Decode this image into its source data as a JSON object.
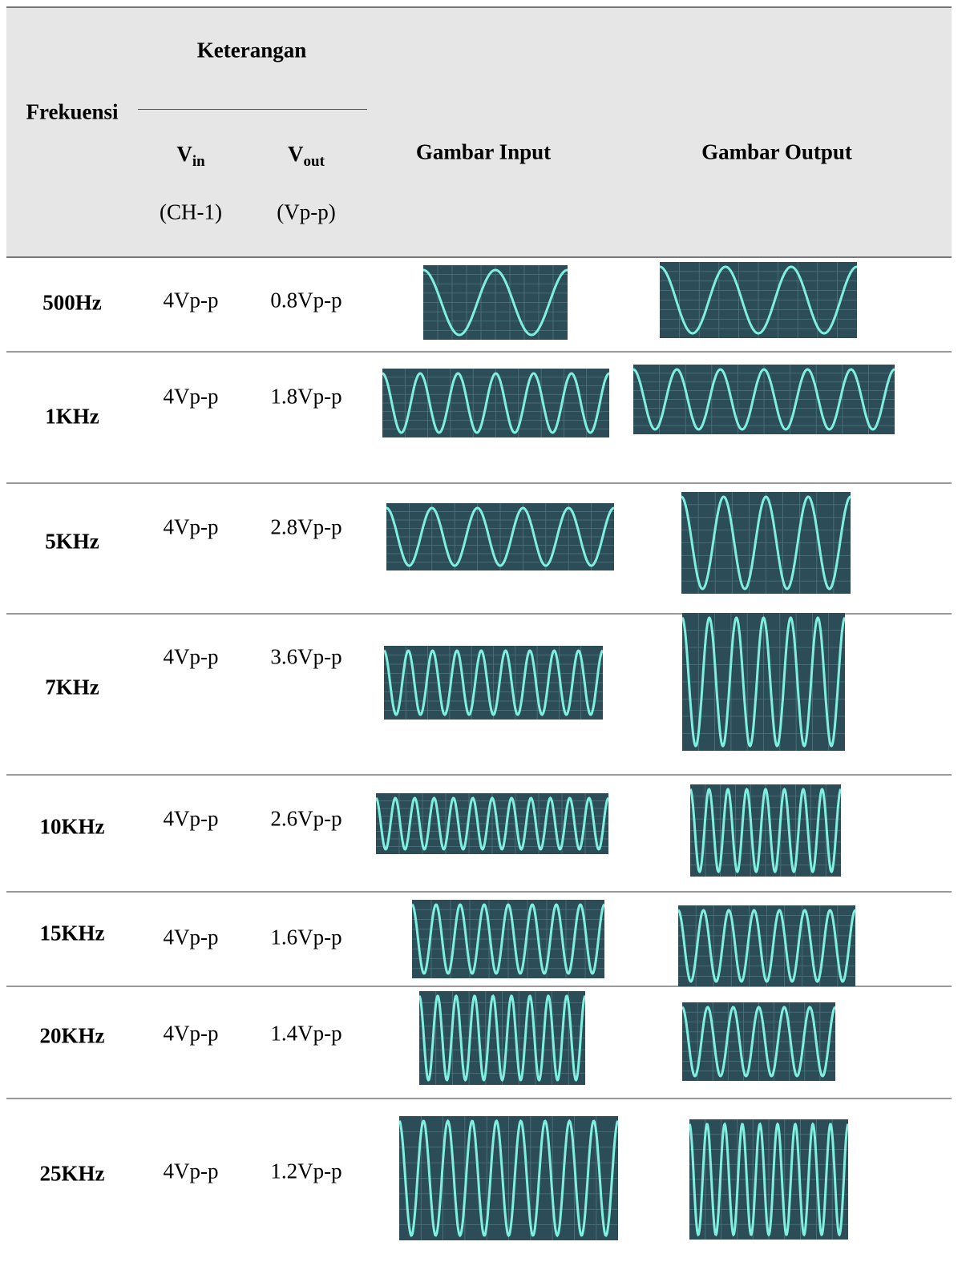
{
  "header": {
    "keterangan": "Keterangan",
    "frekuensi": "Frekuensi",
    "vin": {
      "main": "V",
      "sub": "in"
    },
    "vout": {
      "main": "V",
      "sub": "out"
    },
    "vin_unit": "(CH-1)",
    "vout_unit": "(Vp-p)",
    "gambar_input": "Gambar Input",
    "gambar_output": "Gambar Output"
  },
  "table": {
    "rows": [
      [
        "500Hz",
        "4Vp-p",
        "0.8Vp-p"
      ],
      [
        "1KHz",
        "4Vp-p",
        "1.8Vp-p"
      ],
      [
        "5KHz",
        "4Vp-p",
        "2.8Vp-p"
      ],
      [
        "7KHz",
        "4Vp-p",
        "3.6Vp-p"
      ],
      [
        "10KHz",
        "4Vp-p",
        "2.6Vp-p"
      ],
      [
        "15KHz",
        "4Vp-p",
        "1.6Vp-p"
      ],
      [
        "20KHz",
        "4Vp-p",
        "1.4Vp-p"
      ],
      [
        "25KHz",
        "4Vp-p",
        "1.2Vp-p"
      ]
    ]
  }
}
